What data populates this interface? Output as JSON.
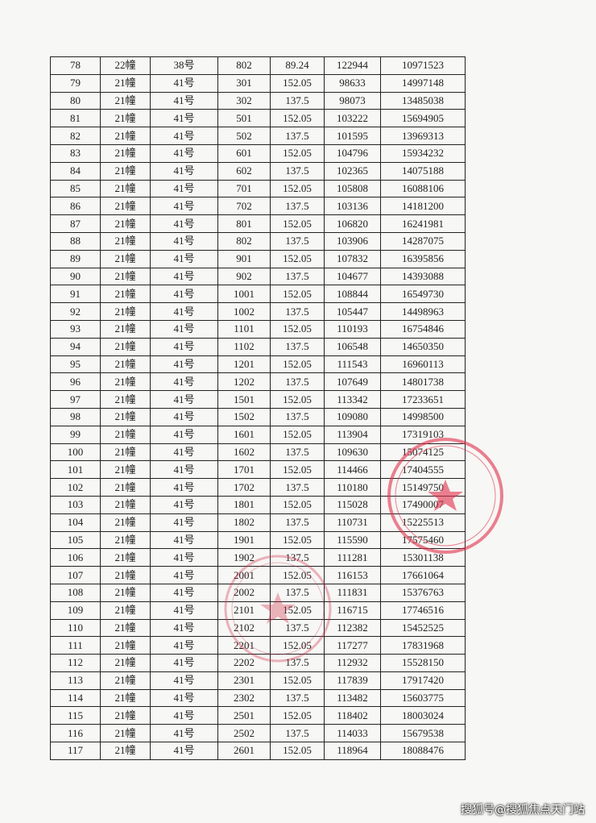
{
  "table": {
    "rows": [
      [
        "78",
        "22幢",
        "38号",
        "802",
        "89.24",
        "122944",
        "10971523"
      ],
      [
        "79",
        "21幢",
        "41号",
        "301",
        "152.05",
        "98633",
        "14997148"
      ],
      [
        "80",
        "21幢",
        "41号",
        "302",
        "137.5",
        "98073",
        "13485038"
      ],
      [
        "81",
        "21幢",
        "41号",
        "501",
        "152.05",
        "103222",
        "15694905"
      ],
      [
        "82",
        "21幢",
        "41号",
        "502",
        "137.5",
        "101595",
        "13969313"
      ],
      [
        "83",
        "21幢",
        "41号",
        "601",
        "152.05",
        "104796",
        "15934232"
      ],
      [
        "84",
        "21幢",
        "41号",
        "602",
        "137.5",
        "102365",
        "14075188"
      ],
      [
        "85",
        "21幢",
        "41号",
        "701",
        "152.05",
        "105808",
        "16088106"
      ],
      [
        "86",
        "21幢",
        "41号",
        "702",
        "137.5",
        "103136",
        "14181200"
      ],
      [
        "87",
        "21幢",
        "41号",
        "801",
        "152.05",
        "106820",
        "16241981"
      ],
      [
        "88",
        "21幢",
        "41号",
        "802",
        "137.5",
        "103906",
        "14287075"
      ],
      [
        "89",
        "21幢",
        "41号",
        "901",
        "152.05",
        "107832",
        "16395856"
      ],
      [
        "90",
        "21幢",
        "41号",
        "902",
        "137.5",
        "104677",
        "14393088"
      ],
      [
        "91",
        "21幢",
        "41号",
        "1001",
        "152.05",
        "108844",
        "16549730"
      ],
      [
        "92",
        "21幢",
        "41号",
        "1002",
        "137.5",
        "105447",
        "14498963"
      ],
      [
        "93",
        "21幢",
        "41号",
        "1101",
        "152.05",
        "110193",
        "16754846"
      ],
      [
        "94",
        "21幢",
        "41号",
        "1102",
        "137.5",
        "106548",
        "14650350"
      ],
      [
        "95",
        "21幢",
        "41号",
        "1201",
        "152.05",
        "111543",
        "16960113"
      ],
      [
        "96",
        "21幢",
        "41号",
        "1202",
        "137.5",
        "107649",
        "14801738"
      ],
      [
        "97",
        "21幢",
        "41号",
        "1501",
        "152.05",
        "113342",
        "17233651"
      ],
      [
        "98",
        "21幢",
        "41号",
        "1502",
        "137.5",
        "109080",
        "14998500"
      ],
      [
        "99",
        "21幢",
        "41号",
        "1601",
        "152.05",
        "113904",
        "17319103"
      ],
      [
        "100",
        "21幢",
        "41号",
        "1602",
        "137.5",
        "109630",
        "15074125"
      ],
      [
        "101",
        "21幢",
        "41号",
        "1701",
        "152.05",
        "114466",
        "17404555"
      ],
      [
        "102",
        "21幢",
        "41号",
        "1702",
        "137.5",
        "110180",
        "15149750"
      ],
      [
        "103",
        "21幢",
        "41号",
        "1801",
        "152.05",
        "115028",
        "17490007"
      ],
      [
        "104",
        "21幢",
        "41号",
        "1802",
        "137.5",
        "110731",
        "15225513"
      ],
      [
        "105",
        "21幢",
        "41号",
        "1901",
        "152.05",
        "115590",
        "17575460"
      ],
      [
        "106",
        "21幢",
        "41号",
        "1902",
        "137.5",
        "111281",
        "15301138"
      ],
      [
        "107",
        "21幢",
        "41号",
        "2001",
        "152.05",
        "116153",
        "17661064"
      ],
      [
        "108",
        "21幢",
        "41号",
        "2002",
        "137.5",
        "111831",
        "15376763"
      ],
      [
        "109",
        "21幢",
        "41号",
        "2101",
        "152.05",
        "116715",
        "17746516"
      ],
      [
        "110",
        "21幢",
        "41号",
        "2102",
        "137.5",
        "112382",
        "15452525"
      ],
      [
        "111",
        "21幢",
        "41号",
        "2201",
        "152.05",
        "117277",
        "17831968"
      ],
      [
        "112",
        "21幢",
        "41号",
        "2202",
        "137.5",
        "112932",
        "15528150"
      ],
      [
        "113",
        "21幢",
        "41号",
        "2301",
        "152.05",
        "117839",
        "17917420"
      ],
      [
        "114",
        "21幢",
        "41号",
        "2302",
        "137.5",
        "113482",
        "15603775"
      ],
      [
        "115",
        "21幢",
        "41号",
        "2501",
        "152.05",
        "118402",
        "18003024"
      ],
      [
        "116",
        "21幢",
        "41号",
        "2502",
        "137.5",
        "114033",
        "15679538"
      ],
      [
        "117",
        "21幢",
        "41号",
        "2601",
        "152.05",
        "118964",
        "18088476"
      ]
    ]
  },
  "watermark": "搜狐号@搜狐焦点天门站"
}
